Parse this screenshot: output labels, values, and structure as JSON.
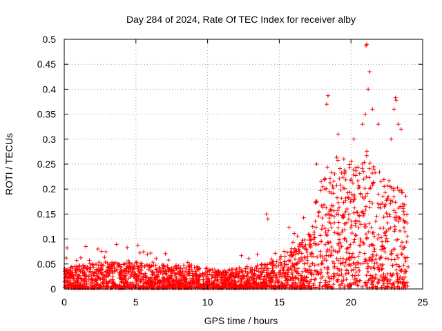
{
  "chart_data": {
    "type": "scatter",
    "title": "Day 284 of 2024, Rate Of TEC Index for receiver alby",
    "xlabel": "GPS time / hours",
    "ylabel": "ROTI / TECUs",
    "xlim": [
      0,
      25
    ],
    "ylim": [
      0,
      0.5
    ],
    "x_ticks": [
      0,
      5,
      10,
      15,
      20,
      25
    ],
    "x_tick_labels": [
      "0",
      "5",
      "10",
      "15",
      "20",
      "25"
    ],
    "y_ticks": [
      0,
      0.05,
      0.1,
      0.15,
      0.2,
      0.25,
      0.3,
      0.35,
      0.4,
      0.45,
      0.5
    ],
    "y_tick_labels": [
      "0",
      "0.05",
      "0.1",
      "0.15",
      "0.2",
      "0.25",
      "0.3",
      "0.35",
      "0.4",
      "0.45",
      "0.5"
    ],
    "grid": true,
    "marker": "+",
    "color": "#ff0000",
    "data_range": [
      0,
      24
    ],
    "envelope": [
      [
        0,
        0.035
      ],
      [
        1,
        0.04
      ],
      [
        2,
        0.045
      ],
      [
        3,
        0.045
      ],
      [
        4,
        0.045
      ],
      [
        5,
        0.045
      ],
      [
        6,
        0.04
      ],
      [
        7,
        0.04
      ],
      [
        8,
        0.04
      ],
      [
        9,
        0.04
      ],
      [
        10,
        0.035
      ],
      [
        11,
        0.03
      ],
      [
        12,
        0.035
      ],
      [
        13,
        0.04
      ],
      [
        14,
        0.045
      ],
      [
        15,
        0.055
      ],
      [
        16,
        0.07
      ],
      [
        17,
        0.09
      ],
      [
        18,
        0.14
      ],
      [
        19,
        0.15
      ],
      [
        20,
        0.16
      ],
      [
        21,
        0.18
      ],
      [
        22,
        0.15
      ],
      [
        23,
        0.13
      ],
      [
        24,
        0.12
      ]
    ],
    "notable_points": [
      [
        0.2,
        0.082
      ],
      [
        2.35,
        0.08
      ],
      [
        14.1,
        0.15
      ],
      [
        14.2,
        0.14
      ],
      [
        18.4,
        0.387
      ],
      [
        18.3,
        0.37
      ],
      [
        19.1,
        0.31
      ],
      [
        20.2,
        0.3
      ],
      [
        20.8,
        0.33
      ],
      [
        21.0,
        0.35
      ],
      [
        21.05,
        0.487
      ],
      [
        21.1,
        0.49
      ],
      [
        21.3,
        0.435
      ],
      [
        21.2,
        0.4
      ],
      [
        21.5,
        0.36
      ],
      [
        21.9,
        0.33
      ],
      [
        23.1,
        0.383
      ],
      [
        23.15,
        0.378
      ],
      [
        23.3,
        0.33
      ],
      [
        23.5,
        0.32
      ],
      [
        22.8,
        0.3
      ],
      [
        17.6,
        0.25
      ],
      [
        19.5,
        0.26
      ],
      [
        23.0,
        0.36
      ]
    ]
  }
}
